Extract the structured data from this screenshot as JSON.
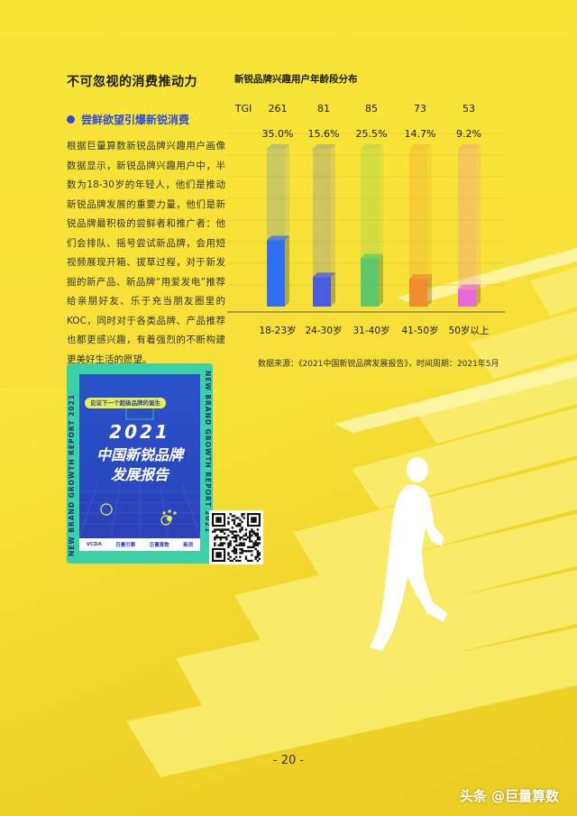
{
  "section": {
    "title": "不可忽视的消费推动力",
    "subtitle": "尝鲜欲望引爆新锐消费",
    "body": "根据巨量算数新锐品牌兴趣用户画像数据显示，新锐品牌兴趣用户中，半数为18-30岁的年轻人，他们是推动新锐品牌发展的重要力量，他们是新锐品牌最积极的尝鲜者和推广者：他们会排队、摇号尝试新品牌，会用短视频展现开箱、拔草过程，对于新发掘的新产品、新品牌“用爱发电”推荐给亲朋好友、乐于充当朋友圈里的KOC，同时对于各类品牌、产品推荐也都更感兴趣，有着强烈的不断构建更美好生活的愿望。"
  },
  "chart_data": {
    "type": "bar",
    "title": "新锐品牌兴趣用户年龄段分布",
    "tgi_label": "TGI",
    "categories": [
      "18-23岁",
      "24-30岁",
      "31-40岁",
      "41-50岁",
      "50岁以上"
    ],
    "tgi": [
      261,
      81,
      85,
      73,
      53
    ],
    "values": [
      35.0,
      15.6,
      25.5,
      14.7,
      9.2
    ],
    "value_labels": [
      "35.0%",
      "15.6%",
      "25.5%",
      "14.7%",
      "9.2%"
    ],
    "colors": [
      "#2f6ff0",
      "#4a5ce0",
      "#5cc86a",
      "#f28a2e",
      "#e86ad8"
    ],
    "ylim": [
      0,
      100
    ],
    "source": "数据来源：《2021中国新锐品牌发展报告》，时间周期：2021年5月"
  },
  "cover": {
    "vertical_text": "NEW BRAND GROWTH REPORT 2021",
    "tag": "见证下一个超级品牌的诞生",
    "year": "2021",
    "title_line1": "中国新锐品牌",
    "title_line2": "发展报告",
    "logos": [
      "VCDA",
      "巨量引擎",
      "巨量算数",
      "新浪"
    ]
  },
  "page_number": "- 20 -",
  "watermark": "头条 @巨量算数"
}
